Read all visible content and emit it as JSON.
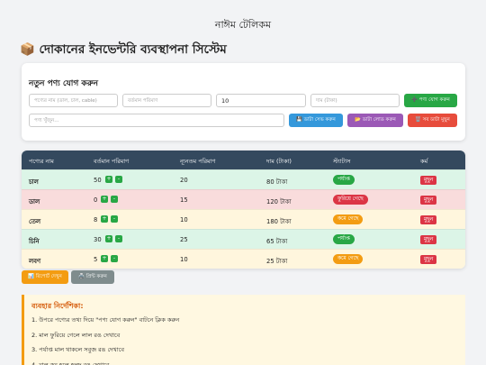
{
  "header": {
    "shop_name": "নাঈম টেলিকম",
    "title": "📦 দোকানের ইনভেন্টরি ব্যবস্থাপনা সিস্টেম"
  },
  "form": {
    "title": "নতুন পণ্য যোগ করুন",
    "fields": [
      {
        "placeholder": "পণ্যের নাম (ডাল, চাল, cable)"
      },
      {
        "placeholder": "বর্তমান পরিমাণ"
      },
      {
        "value": "10"
      },
      {
        "placeholder": "দাম (টাকা)"
      }
    ],
    "add_button": "➕ পণ্য যোগ করুন",
    "search_placeholder": "পণ্য খুঁজুন...",
    "save_button": "💾 ডাটা সেভ করুন",
    "load_button": "📂 ডাটা লোড করুন",
    "clear_button": "🗑️ সব ডাটা মুছুন"
  },
  "table": {
    "headers": [
      "পণ্যের নাম",
      "বর্তমান পরিমাণ",
      "ন্যূনতম পরিমাণ",
      "দাম (টাকা)",
      "স্ট্যাটাস",
      "কর্ম"
    ],
    "increase": "+",
    "decrease": "-",
    "delete": "মুছুন",
    "rows": [
      {
        "name": "চাল",
        "quantity": 50,
        "minimum": 20,
        "price": "80 টাকা",
        "status": "পর্যাপ্ত",
        "row_color": "#dcf5e7",
        "badge_color": "#28a745"
      },
      {
        "name": "ডাল",
        "quantity": 0,
        "minimum": 15,
        "price": "120 টাকা",
        "status": "ফুরিয়ে গেছে",
        "row_color": "#f9dcdc",
        "badge_color": "#dc3545"
      },
      {
        "name": "তেল",
        "quantity": 8,
        "minimum": 10,
        "price": "180 টাকা",
        "status": "কমে গেছে",
        "row_color": "#fff6dd",
        "badge_color": "#f39c12"
      },
      {
        "name": "চিনি",
        "quantity": 30,
        "minimum": 25,
        "price": "65 টাকা",
        "status": "পর্যাপ্ত",
        "row_color": "#dcf5e7",
        "badge_color": "#28a745"
      },
      {
        "name": "লবণ",
        "quantity": 5,
        "minimum": 10,
        "price": "25 টাকা",
        "status": "কমে গেছে",
        "row_color": "#fff6dd",
        "badge_color": "#f39c12"
      }
    ]
  },
  "actions": {
    "report_button": "📊 রিপোর্ট দেখুন",
    "print_button": "🖨️ প্রিন্ট করুন"
  },
  "help": {
    "title": "ব্যবহার নির্দেশিকা:",
    "items": [
      "উপরে পণ্যের তথ্য দিয়ে \"পণ্য যোগ করুন\" বাটনে ক্লিক করুন",
      "মাল ফুরিয়ে গেলে লাল রঙ দেখাবে",
      "পর্যাপ্ত মাল থাকলে সবুজ রঙ দেখাবে",
      "মাল কম হলে হলুদ রঙ দেখাবে"
    ]
  }
}
